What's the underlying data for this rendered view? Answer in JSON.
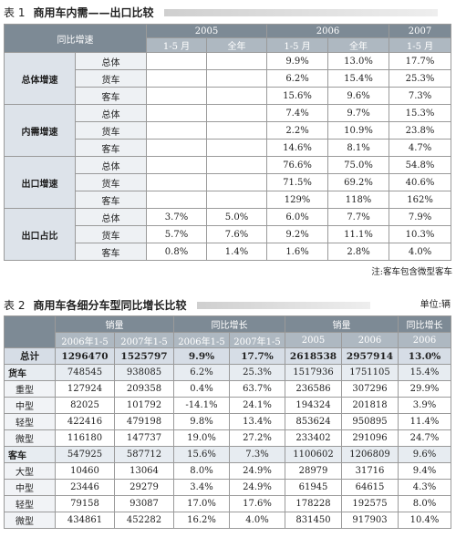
{
  "table1": {
    "label": "表 1",
    "title": "商用车内需——出口比较",
    "corner_header": "同比增速",
    "year_headers": [
      "2005",
      "2006",
      "2007"
    ],
    "period_headers": [
      "1-5 月",
      "全年",
      "1-5 月",
      "全年",
      "1-5 月"
    ],
    "groups": [
      {
        "name": "总体增速",
        "rows": [
          {
            "sub": "总体",
            "v": [
              "",
              "",
              "9.9%",
              "13.0%",
              "17.7%"
            ]
          },
          {
            "sub": "货车",
            "v": [
              "",
              "",
              "6.2%",
              "15.4%",
              "25.3%"
            ]
          },
          {
            "sub": "客车",
            "v": [
              "",
              "",
              "15.6%",
              "9.6%",
              "7.3%"
            ]
          }
        ]
      },
      {
        "name": "内需增速",
        "rows": [
          {
            "sub": "总体",
            "v": [
              "",
              "",
              "7.4%",
              "9.7%",
              "15.3%"
            ]
          },
          {
            "sub": "货车",
            "v": [
              "",
              "",
              "2.2%",
              "10.9%",
              "23.8%"
            ]
          },
          {
            "sub": "客车",
            "v": [
              "",
              "",
              "14.6%",
              "8.1%",
              "4.7%"
            ]
          }
        ]
      },
      {
        "name": "出口增速",
        "rows": [
          {
            "sub": "总体",
            "v": [
              "",
              "",
              "76.6%",
              "75.0%",
              "54.8%"
            ]
          },
          {
            "sub": "货车",
            "v": [
              "",
              "",
              "71.5%",
              "69.2%",
              "40.6%"
            ]
          },
          {
            "sub": "客车",
            "v": [
              "",
              "",
              "129%",
              "118%",
              "162%"
            ]
          }
        ]
      },
      {
        "name": "出口占比",
        "rows": [
          {
            "sub": "总体",
            "v": [
              "3.7%",
              "5.0%",
              "6.0%",
              "7.7%",
              "7.9%"
            ]
          },
          {
            "sub": "货车",
            "v": [
              "5.7%",
              "7.6%",
              "9.2%",
              "11.1%",
              "10.3%"
            ]
          },
          {
            "sub": "客车",
            "v": [
              "0.8%",
              "1.4%",
              "1.6%",
              "2.8%",
              "4.0%"
            ]
          }
        ]
      }
    ],
    "note": "注:客车包含微型客车"
  },
  "table2": {
    "label": "表 2",
    "title": "商用车各细分车型同比增长比较",
    "unit": "单位:辆",
    "group_headers": [
      "销量",
      "同比增长",
      "销量",
      "同比增长"
    ],
    "sub_headers": [
      "2006年1-5",
      "2007年1-5",
      "2006年1-5",
      "2007年1-5",
      "2005",
      "2006",
      "2006"
    ],
    "rows": [
      {
        "name": "总计",
        "kind": "sum",
        "v": [
          "1296470",
          "1525797",
          "9.9%",
          "17.7%",
          "2618538",
          "2957914",
          "13.0%"
        ]
      },
      {
        "name": "货车",
        "kind": "cat",
        "v": [
          "748545",
          "938085",
          "6.2%",
          "25.3%",
          "1517936",
          "1751105",
          "15.4%"
        ]
      },
      {
        "name": "重型",
        "kind": "sub",
        "v": [
          "127924",
          "209358",
          "0.4%",
          "63.7%",
          "236586",
          "307296",
          "29.9%"
        ]
      },
      {
        "name": "中型",
        "kind": "sub",
        "v": [
          "82025",
          "101792",
          "-14.1%",
          "24.1%",
          "194324",
          "201818",
          "3.9%"
        ]
      },
      {
        "name": "轻型",
        "kind": "sub",
        "v": [
          "422416",
          "479198",
          "9.8%",
          "13.4%",
          "853624",
          "950895",
          "11.4%"
        ]
      },
      {
        "name": "微型",
        "kind": "sub",
        "v": [
          "116180",
          "147737",
          "19.0%",
          "27.2%",
          "233402",
          "291096",
          "24.7%"
        ]
      },
      {
        "name": "客车",
        "kind": "cat",
        "v": [
          "547925",
          "587712",
          "15.6%",
          "7.3%",
          "1100602",
          "1206809",
          "9.6%"
        ]
      },
      {
        "name": "大型",
        "kind": "sub",
        "v": [
          "10460",
          "13064",
          "8.0%",
          "24.9%",
          "28979",
          "31716",
          "9.4%"
        ]
      },
      {
        "name": "中型",
        "kind": "sub",
        "v": [
          "23446",
          "29279",
          "3.4%",
          "24.9%",
          "61945",
          "64615",
          "4.3%"
        ]
      },
      {
        "name": "轻型",
        "kind": "sub",
        "v": [
          "79158",
          "93087",
          "17.0%",
          "17.6%",
          "178228",
          "192575",
          "8.0%"
        ]
      },
      {
        "name": "微型",
        "kind": "sub",
        "v": [
          "434861",
          "452282",
          "16.2%",
          "4.0%",
          "831450",
          "917903",
          "10.4%"
        ]
      }
    ]
  }
}
